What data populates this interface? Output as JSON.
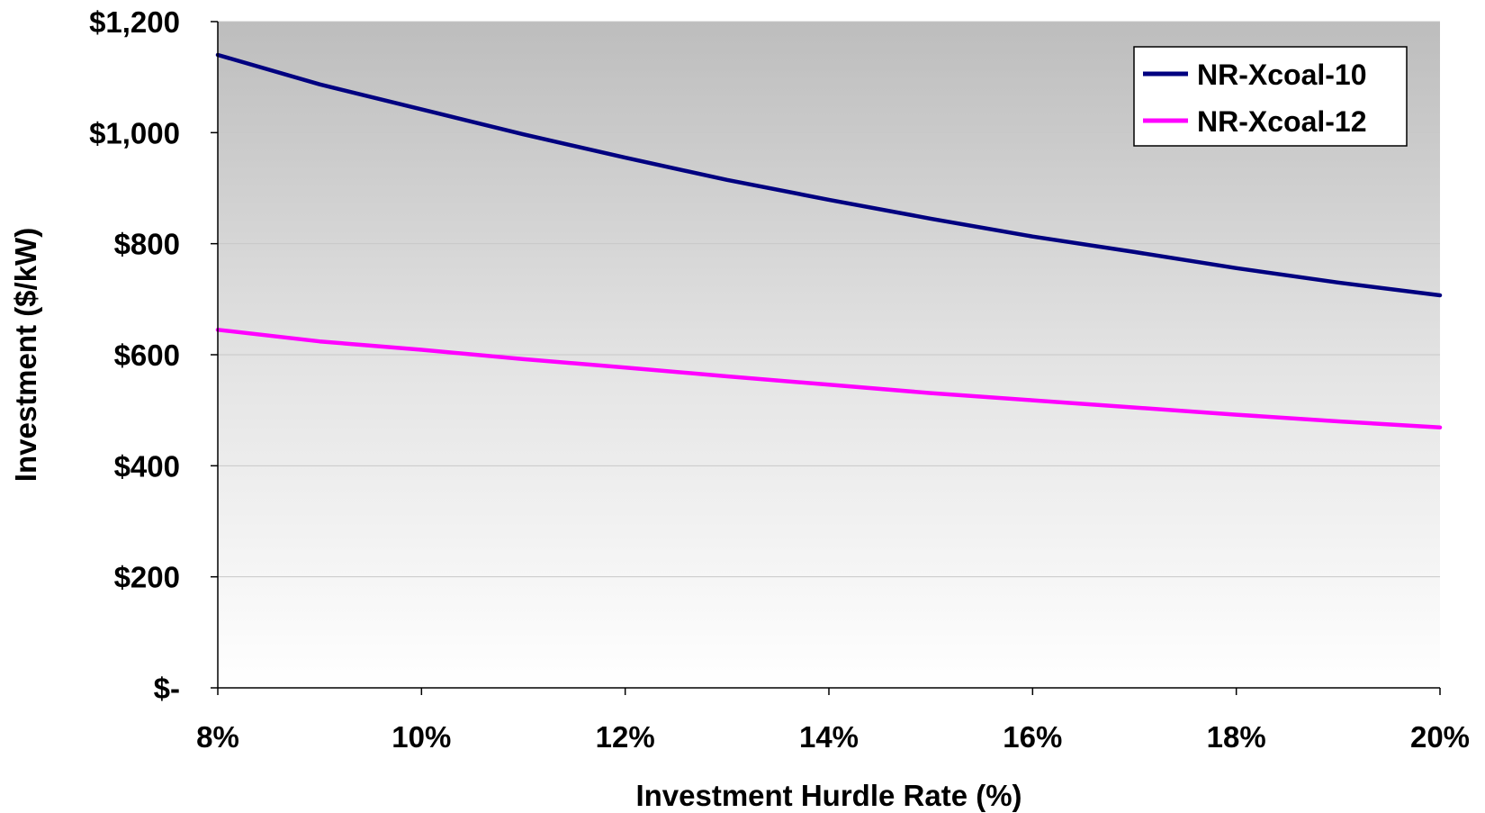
{
  "chart_data": {
    "type": "line",
    "title": "",
    "xlabel": "Investment Hurdle Rate (%)",
    "ylabel": "Investment ($/kW)",
    "x": [
      8,
      9,
      10,
      11,
      12,
      13,
      14,
      15,
      16,
      17,
      18,
      19,
      20
    ],
    "xticks": [
      8,
      10,
      12,
      14,
      16,
      18,
      20
    ],
    "xtick_labels": [
      "8%",
      "10%",
      "12%",
      "14%",
      "16%",
      "18%",
      "20%"
    ],
    "xlim": [
      8,
      20
    ],
    "yticks": [
      0,
      200,
      400,
      600,
      800,
      1000,
      1200
    ],
    "ytick_labels": [
      "$-",
      "$200",
      "$400",
      "$600",
      "$800",
      "$1,000",
      "$1,200"
    ],
    "ylim": [
      0,
      1200
    ],
    "grid": "horizontal",
    "legend_position": "top-right",
    "background": "gray-to-white vertical gradient",
    "series": [
      {
        "name": "NR-Xcoal-10",
        "color": "#000080",
        "values": [
          1140,
          1087,
          1042,
          997,
          955,
          915,
          879,
          845,
          813,
          785,
          756,
          730,
          707
        ]
      },
      {
        "name": "NR-Xcoal-12",
        "color": "#FF00FF",
        "values": [
          645,
          624,
          609,
          592,
          577,
          561,
          546,
          531,
          518,
          505,
          492,
          480,
          469
        ]
      }
    ]
  }
}
